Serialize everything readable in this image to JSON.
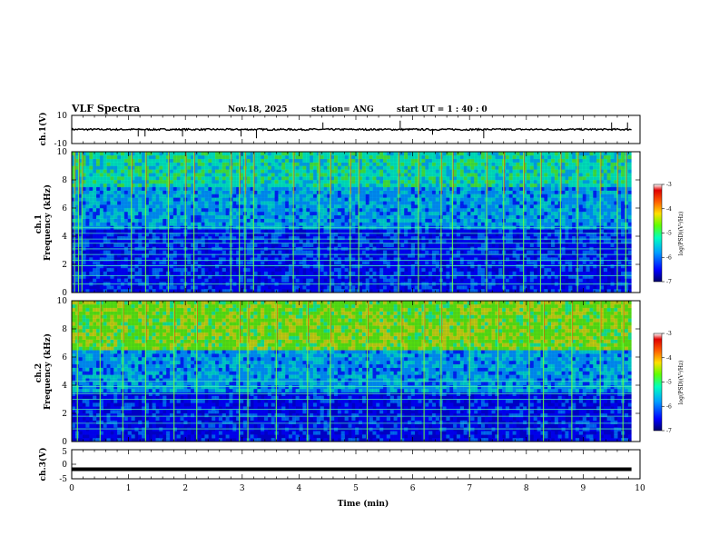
{
  "header": {
    "title": "VLF Spectra",
    "date": "Nov.18, 2025",
    "station": "station= ANG",
    "start": "start  UT =   1 : 40 : 0"
  },
  "colors": {
    "colormap": [
      "#00007a",
      "#0000ff",
      "#00a0ff",
      "#00ffc0",
      "#60ff00",
      "#ffe000",
      "#ff6000",
      "#e00000",
      "#ffffff"
    ],
    "line": "#000000"
  },
  "chart_data": [
    {
      "type": "line",
      "id": "ch1-waveform",
      "ylabel": "ch.1(V)",
      "ylim": [
        -10,
        10
      ],
      "yticks": [
        "10",
        "-10"
      ],
      "x_range_min": [
        0,
        9.85
      ],
      "baseline_v": 0,
      "spikes": [
        {
          "t": 1.17,
          "v": -2
        },
        {
          "t": 1.29,
          "v": -2
        },
        {
          "t": 1.95,
          "v": -2
        },
        {
          "t": 2.98,
          "v": -2
        },
        {
          "t": 3.25,
          "v": -2.5
        },
        {
          "t": 4.42,
          "v": 2
        },
        {
          "t": 5.78,
          "v": 2.5
        },
        {
          "t": 6.35,
          "v": -1.5
        },
        {
          "t": 7.25,
          "v": -2.5
        },
        {
          "t": 9.5,
          "v": 2
        },
        {
          "t": 9.78,
          "v": 2
        }
      ]
    },
    {
      "type": "heatmap",
      "id": "ch1-spectrogram",
      "ylabel": "ch.1\nFrequency  (kHz)",
      "ylim": [
        0,
        10
      ],
      "yticks": [
        "0",
        "2",
        "4",
        "6",
        "8",
        "10"
      ],
      "colorbar": {
        "label": "log(PSD)(V²/Hz)",
        "range": [
          -7,
          -3
        ],
        "ticks": [
          "-3",
          "-4",
          "-5",
          "-6",
          "-7"
        ]
      },
      "bands": [
        {
          "from": 0,
          "to": 4.5,
          "level": 1.1
        },
        {
          "from": 4.5,
          "to": 7.5,
          "level": 2.2
        },
        {
          "from": 7.5,
          "to": 10,
          "level": 3.0
        }
      ],
      "horizontal_lines_khz": [
        0.6,
        1.2,
        1.9,
        2.3,
        2.7,
        3.1,
        3.5,
        3.8,
        4.2,
        4.6
      ],
      "sferics_min": [
        0.05,
        0.12,
        0.18,
        1.05,
        1.3,
        1.7,
        2.0,
        2.15,
        2.8,
        2.95,
        3.05,
        3.2,
        3.9,
        4.35,
        4.55,
        4.9,
        5.05,
        5.75,
        6.1,
        6.5,
        6.7,
        7.3,
        7.6,
        7.95,
        8.25,
        8.6,
        8.9,
        9.3,
        9.6,
        9.75
      ]
    },
    {
      "type": "heatmap",
      "id": "ch2-spectrogram",
      "ylabel": "ch.2\nFrequency  (kHz)",
      "ylim": [
        0,
        10
      ],
      "yticks": [
        "0",
        "2",
        "4",
        "6",
        "8",
        "10"
      ],
      "colorbar": {
        "label": "log(PSD)(V²/Hz)",
        "range": [
          -7,
          -3
        ],
        "ticks": [
          "-3",
          "-4",
          "-5",
          "-6",
          "-7"
        ]
      },
      "bands": [
        {
          "from": 0,
          "to": 3.5,
          "level": 0.9
        },
        {
          "from": 3.5,
          "to": 6.5,
          "level": 2.2
        },
        {
          "from": 6.5,
          "to": 10,
          "level": 4.2
        }
      ],
      "horizontal_lines_khz": [
        0.9,
        1.3,
        1.8,
        2.3,
        3.0,
        3.4,
        3.9,
        4.3
      ],
      "sferics_min": [
        0.1,
        0.5,
        0.9,
        1.3,
        1.8,
        2.2,
        2.95,
        3.1,
        3.6,
        4.15,
        4.55,
        5.2,
        5.8,
        6.2,
        6.5,
        7.0,
        7.5,
        8.05,
        8.3,
        8.8,
        9.3,
        9.7
      ]
    },
    {
      "type": "line",
      "id": "ch3-waveform",
      "ylabel": "ch.3(V)",
      "ylim": [
        -5,
        5
      ],
      "yticks": [
        "5",
        "0",
        "-5"
      ],
      "xlabel": "Time  (min)",
      "xlim": [
        0,
        10
      ],
      "xticks": [
        "0",
        "1",
        "2",
        "3",
        "4",
        "5",
        "6",
        "7",
        "8",
        "9",
        "10"
      ],
      "x_range_min": [
        0,
        9.85
      ],
      "level_v": -1.7
    }
  ]
}
